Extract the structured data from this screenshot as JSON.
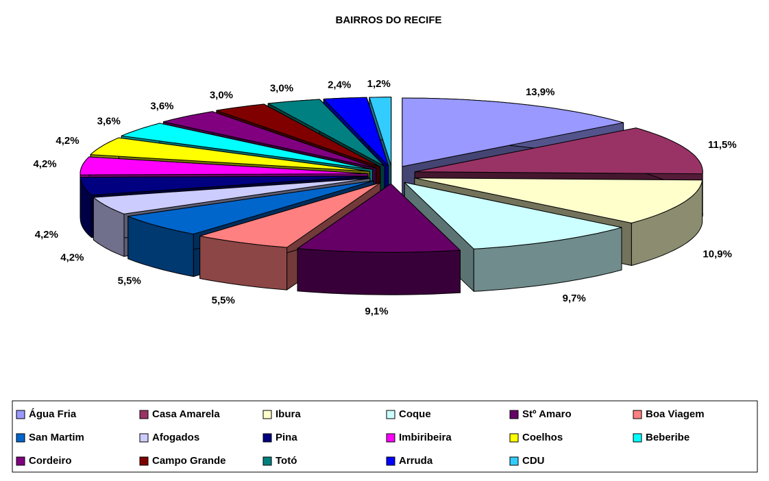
{
  "chart_data": {
    "type": "pie3d",
    "title": "BAIRROS DO RECIFE",
    "categories": [
      "Água Fria",
      "Casa Amarela",
      "Ibura",
      "Coque",
      "Stº Amaro",
      "Boa Viagem",
      "San Martim",
      "Afogados",
      "Pina",
      "Imbiribeira",
      "Coelhos",
      "Beberibe",
      "Cordeiro",
      "Campo Grande",
      "Totó",
      "Arruda",
      "CDU"
    ],
    "values": [
      13.9,
      11.5,
      10.9,
      9.7,
      9.1,
      5.5,
      5.5,
      4.2,
      4.2,
      4.2,
      4.2,
      3.6,
      3.6,
      3.0,
      3.0,
      2.4,
      1.2
    ],
    "value_labels": [
      "13,9%",
      "11,5%",
      "10,9%",
      "9,7%",
      "9,1%",
      "5,5%",
      "5,5%",
      "4,2%",
      "4,2%",
      "4,2%",
      "4,2%",
      "3,6%",
      "3,6%",
      "3,0%",
      "3,0%",
      "2,4%",
      "1,2%"
    ],
    "colors": [
      "#9999ff",
      "#993366",
      "#ffffcc",
      "#ccffff",
      "#660066",
      "#ff8080",
      "#0066cc",
      "#ccccff",
      "#000080",
      "#ff00ff",
      "#ffff00",
      "#00ffff",
      "#800080",
      "#800000",
      "#008080",
      "#0000ff",
      "#33ccff"
    ],
    "legend": "bottom"
  }
}
